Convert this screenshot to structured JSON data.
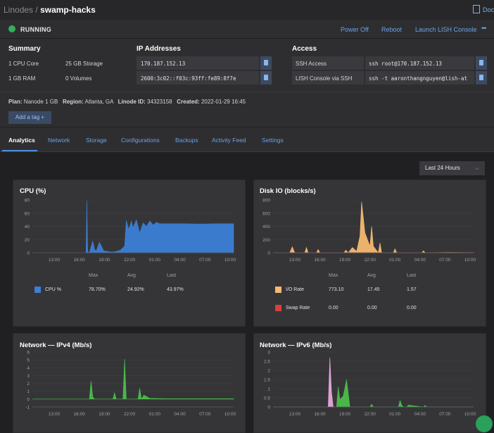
{
  "header": {
    "breadcrumb_parent": "Linodes",
    "breadcrumb_sep": " / ",
    "title": "swamp-hacks",
    "docs_label": "Doc"
  },
  "status": {
    "label": "RUNNING",
    "color": "#33b05a"
  },
  "actions": {
    "power_off": "Power Off",
    "reboot": "Reboot",
    "lish": "Launch LISH Console",
    "more": "•••"
  },
  "summary": {
    "title": "Summary",
    "cpu": "1 CPU Core",
    "storage": "25 GB Storage",
    "ram": "1 GB RAM",
    "volumes": "0 Volumes"
  },
  "ip": {
    "title": "IP Addresses",
    "ipv4": "170.187.152.13",
    "ipv6": "2600:3c02::f03c:93ff:fe89:8f7e"
  },
  "access": {
    "title": "Access",
    "ssh_label": "SSH Access",
    "ssh_value": "ssh root@170.187.152.13",
    "lish_label": "LISH Console via SSH",
    "lish_value": "ssh -t aaronthangnguyen@lish-at"
  },
  "meta": {
    "plan_label": "Plan:",
    "plan": "Nanode 1 GB",
    "region_label": "Region:",
    "region": "Atlanta, GA",
    "id_label": "Linode ID:",
    "id": "34323158",
    "created_label": "Created:",
    "created": "2022-01-29 16:45",
    "add_tag": "Add a tag  +"
  },
  "tabs": [
    "Analytics",
    "Network",
    "Storage",
    "Configurations",
    "Backups",
    "Activity Feed",
    "Settings"
  ],
  "range_select": {
    "value": "Last 24 Hours"
  },
  "legend_headers": {
    "max": "Max",
    "avg": "Avg",
    "last": "Last"
  },
  "charts": {
    "cpu": {
      "title": "CPU (%)",
      "legend": [
        {
          "name": "CPU %",
          "max": "78.70%",
          "avg": "24.92%",
          "last": "43.97%",
          "color": "#3c7fd6"
        }
      ]
    },
    "disk": {
      "title": "Disk IO (blocks/s)",
      "legend": [
        {
          "name": "I/O Rate",
          "max": "773.10",
          "avg": "17.45",
          "last": "1.57",
          "color": "#f5b971"
        },
        {
          "name": "Swap Rate",
          "max": "0.00",
          "avg": "0.00",
          "last": "0.00",
          "color": "#d8403c"
        }
      ]
    },
    "ipv4": {
      "title": "Network — IPv4 (Mb/s)"
    },
    "ipv6": {
      "title": "Network — IPv6 (Mb/s)"
    }
  },
  "chart_data": [
    {
      "type": "area",
      "title": "CPU (%)",
      "x_ticks": [
        "13:00",
        "16:00",
        "19:00",
        "22:00",
        "01:00",
        "04:00",
        "07:00",
        "10:00"
      ],
      "y_ticks": [
        0,
        20,
        40,
        60,
        80
      ],
      "ylim": [
        0,
        80
      ],
      "xlim": [
        0,
        24
      ],
      "series": [
        {
          "name": "CPU %",
          "color": "#3c7fd6",
          "x": [
            6.4,
            6.5,
            6.6,
            6.7,
            6.8,
            7.2,
            7.4,
            7.6,
            8.0,
            8.5,
            9.0,
            9.5,
            10.0,
            10.5,
            11.0,
            11.2,
            11.5,
            11.8,
            12.0,
            12.4,
            12.8,
            13.2,
            13.6,
            14.0,
            14.4,
            14.8,
            15.2,
            16.0,
            18.0,
            20.0,
            22.0,
            24.0
          ],
          "y": [
            0,
            79,
            2,
            1,
            0,
            18,
            6,
            2,
            16,
            3,
            2,
            1,
            2,
            4,
            10,
            49,
            35,
            48,
            38,
            50,
            30,
            45,
            40,
            48,
            42,
            46,
            44,
            44,
            44,
            43.5,
            44,
            44
          ]
        }
      ]
    },
    {
      "type": "area",
      "title": "Disk IO (blocks/s)",
      "x_ticks": [
        "13:00",
        "16:00",
        "19:00",
        "22:00",
        "01:00",
        "04:00",
        "07:00",
        "10:00"
      ],
      "y_ticks": [
        0,
        200,
        400,
        600,
        800
      ],
      "ylim": [
        0,
        800
      ],
      "xlim": [
        0,
        24
      ],
      "series": [
        {
          "name": "I/O Rate",
          "color": "#f5b971",
          "x": [
            2.0,
            2.3,
            2.6,
            3.8,
            4.0,
            4.2,
            5.2,
            5.4,
            5.6,
            8.5,
            8.7,
            9.0,
            9.5,
            10.0,
            10.4,
            10.6,
            11.0,
            11.6,
            11.8,
            12.0,
            12.6,
            12.8,
            13.0,
            14.4,
            14.6,
            14.8,
            17.8,
            18.0,
            18.2,
            21.0,
            24.0
          ],
          "y": [
            0,
            90,
            0,
            0,
            80,
            0,
            0,
            50,
            0,
            0,
            40,
            0,
            80,
            20,
            250,
            773,
            300,
            100,
            400,
            100,
            0,
            150,
            0,
            0,
            60,
            0,
            0,
            30,
            0,
            5,
            2
          ]
        },
        {
          "name": "Swap Rate",
          "color": "#d8403c",
          "x": [
            0,
            24
          ],
          "y": [
            0,
            0
          ]
        }
      ]
    },
    {
      "type": "area",
      "title": "Network — IPv4 (Mb/s)",
      "x_ticks": [
        "13:00",
        "16:00",
        "19:00",
        "22:00",
        "01:00",
        "04:00",
        "07:00",
        "10:00"
      ],
      "y_ticks": [
        -1,
        0,
        1,
        2,
        3,
        4,
        5,
        6
      ],
      "ylim": [
        -1,
        6
      ],
      "xlim": [
        0,
        24
      ],
      "series": [
        {
          "name": "Network",
          "color": "#4bbe4b",
          "x": [
            0,
            6.8,
            7.0,
            7.2,
            7.4,
            9.6,
            9.8,
            10.0,
            10.8,
            11.0,
            11.2,
            12.6,
            12.8,
            13.0,
            13.3,
            14.0,
            16.0,
            24.0
          ],
          "y": [
            0,
            0,
            2.3,
            0.3,
            0,
            0,
            0.8,
            0,
            0,
            5.1,
            0,
            0,
            1.4,
            0,
            0.5,
            0.1,
            0.05,
            0.05
          ]
        }
      ]
    },
    {
      "type": "area",
      "title": "Network — IPv6 (Mb/s)",
      "x_ticks": [
        "13:00",
        "16:00",
        "19:00",
        "22:00",
        "01:00",
        "04:00",
        "07:00",
        "10:00"
      ],
      "y_ticks": [
        0,
        0.5,
        1,
        1.5,
        2,
        2.5,
        3
      ],
      "ylim": [
        0,
        3
      ],
      "xlim": [
        0,
        24
      ],
      "series": [
        {
          "name": "Network",
          "color": "#4bbe4b",
          "x": [
            0,
            7.6,
            7.8,
            8.0,
            8.4,
            8.8,
            9.2,
            11.6,
            11.8,
            12.0,
            15.0,
            15.2,
            15.4,
            15.6,
            16.0,
            16.2,
            18.0,
            18.2,
            18.4,
            24.0
          ],
          "y": [
            0,
            0,
            1.1,
            0.4,
            0.6,
            1.5,
            0,
            0,
            0.15,
            0,
            0,
            0.35,
            0.1,
            0,
            0,
            0.1,
            0,
            0.08,
            0,
            0
          ]
        },
        {
          "name": "Public",
          "color": "#e8a8d8",
          "x": [
            6.6,
            6.8,
            7.0,
            7.2
          ],
          "y": [
            0,
            2.7,
            0.8,
            0
          ]
        }
      ]
    }
  ]
}
